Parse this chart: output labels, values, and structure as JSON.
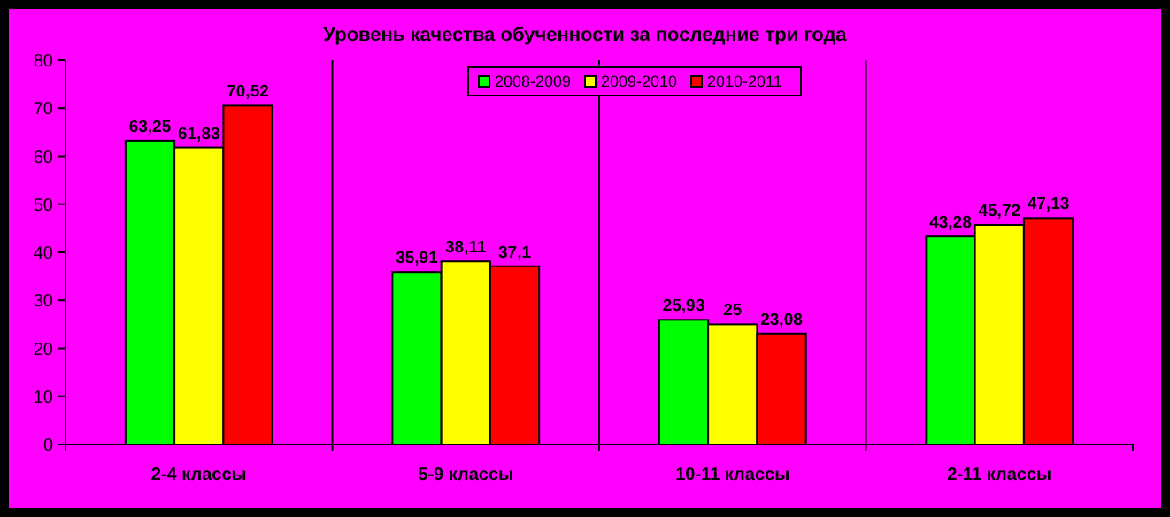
{
  "chart_data": {
    "type": "bar",
    "title": "Уровень качества обученности за последние три года",
    "categories": [
      "2-4 классы",
      "5-9 классы",
      "10-11 классы",
      "2-11 классы"
    ],
    "series": [
      {
        "name": "2008-2009",
        "color": "#00ff00",
        "values": [
          63.25,
          35.91,
          25.93,
          43.28
        ],
        "value_labels": [
          "63,25",
          "35,91",
          "25,93",
          "43,28"
        ]
      },
      {
        "name": "2009-2010",
        "color": "#ffff00",
        "values": [
          61.83,
          38.11,
          25,
          45.72
        ],
        "value_labels": [
          "61,83",
          "38,11",
          "25",
          "45,72"
        ]
      },
      {
        "name": "2010-2011",
        "color": "#ff0000",
        "values": [
          70.52,
          37.1,
          23.08,
          47.13
        ],
        "value_labels": [
          "70,52",
          "37,1",
          "23,08",
          "47,13"
        ]
      }
    ],
    "ylim": [
      0,
      80
    ],
    "yticks": [
      0,
      10,
      20,
      30,
      40,
      50,
      60,
      70,
      80
    ],
    "grid": "x",
    "legend": "top"
  }
}
